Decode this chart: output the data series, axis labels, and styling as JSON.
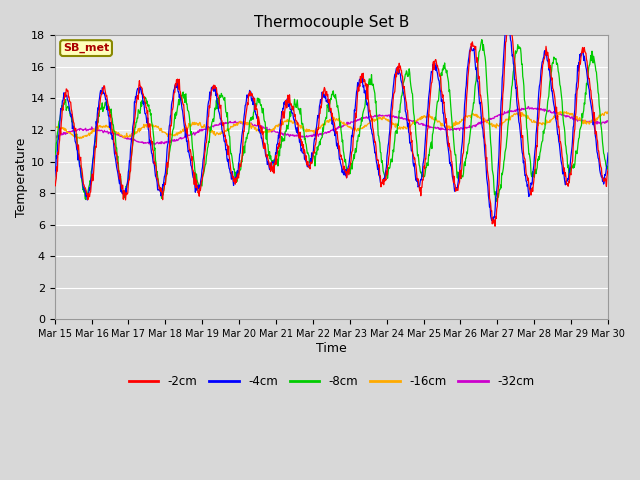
{
  "title": "Thermocouple Set B",
  "xlabel": "Time",
  "ylabel": "Temperature",
  "annotation": "SB_met",
  "ylim": [
    0,
    18
  ],
  "yticks": [
    0,
    2,
    4,
    6,
    8,
    10,
    12,
    14,
    16,
    18
  ],
  "x_labels": [
    "Mar 15",
    "Mar 16",
    "Mar 17",
    "Mar 18",
    "Mar 19",
    "Mar 20",
    "Mar 21",
    "Mar 22",
    "Mar 23",
    "Mar 24",
    "Mar 25",
    "Mar 26",
    "Mar 27",
    "Mar 28",
    "Mar 29",
    "Mar 30"
  ],
  "colors": {
    "-2cm": "#ff0000",
    "-4cm": "#0000ff",
    "-8cm": "#00cc00",
    "-16cm": "#ffaa00",
    "-32cm": "#cc00cc"
  },
  "legend_colors": [
    "#ff0000",
    "#0000ff",
    "#00cc00",
    "#ffaa00",
    "#cc00cc"
  ],
  "legend_labels": [
    "-2cm",
    "-4cm",
    "-8cm",
    "-16cm",
    "-32cm"
  ],
  "fig_bg_color": "#d8d8d8",
  "plot_bg_upper": "#e8e8e8",
  "plot_bg_lower": "#d0d0d0",
  "grid_color": "#ffffff",
  "n_points": 1000,
  "annotation_fg": "#aa0000",
  "annotation_bg": "#ffffbb",
  "annotation_edge": "#888800"
}
